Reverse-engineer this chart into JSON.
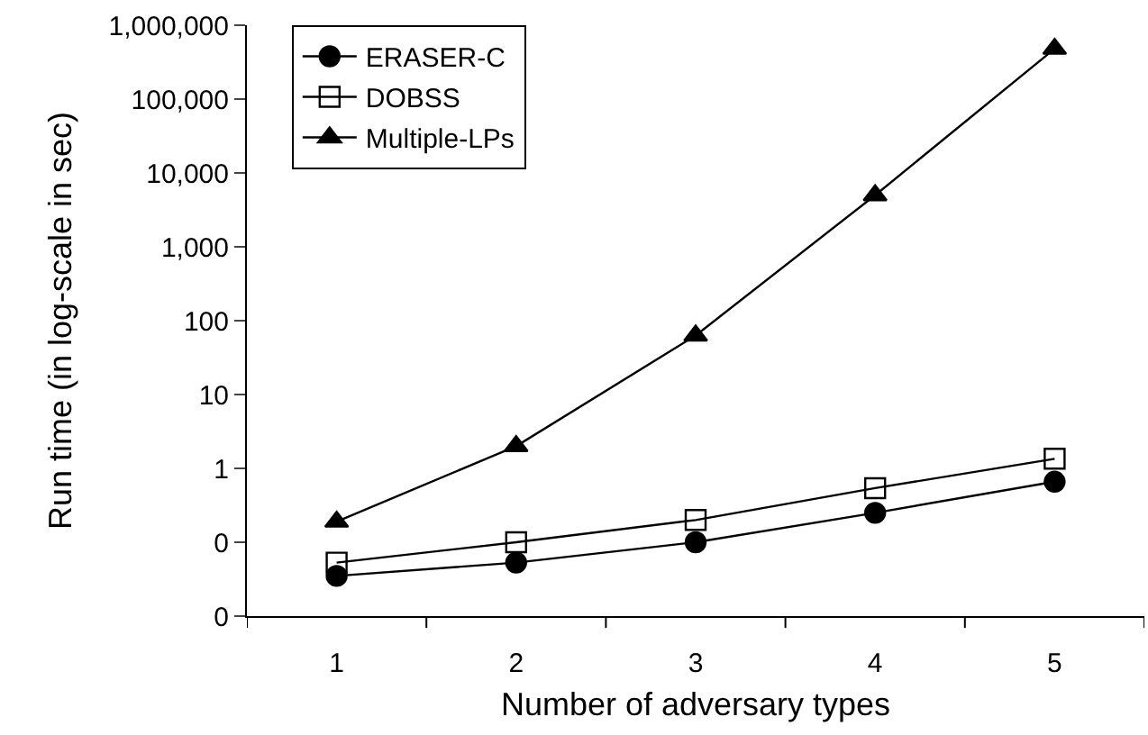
{
  "chart_data": {
    "type": "line",
    "xlabel": "Number of adversary types",
    "ylabel": "Run time (in log-scale in sec)",
    "categories": [
      "1",
      "2",
      "3",
      "4",
      "5"
    ],
    "series": [
      {
        "name": "ERASER-C",
        "color": "#000000",
        "marker": "circle",
        "values": [
          0.035,
          0.053,
          0.1,
          0.25,
          0.66
        ]
      },
      {
        "name": "DOBSS",
        "color": "#000000",
        "marker": "square",
        "values": [
          0.053,
          0.1,
          0.2,
          0.54,
          1.35
        ]
      },
      {
        "name": "Multiple-LPs",
        "color": "#000000",
        "marker": "triangle",
        "values": [
          0.19,
          2,
          63,
          5000,
          480000
        ]
      }
    ],
    "log": "y",
    "ylim": [
      0.01,
      1000000
    ],
    "yticks": [
      {
        "value": 0.01,
        "label": "0"
      },
      {
        "value": 0.1,
        "label": "0"
      },
      {
        "value": 1,
        "label": "1"
      },
      {
        "value": 10,
        "label": "10"
      },
      {
        "value": 100,
        "label": "100"
      },
      {
        "value": 1000,
        "label": "1,000"
      },
      {
        "value": 10000,
        "label": "10,000"
      },
      {
        "value": 100000,
        "label": "100,000"
      },
      {
        "value": 1000000,
        "label": "1,000,000"
      }
    ],
    "legend": "top left",
    "line_style": "solid"
  }
}
